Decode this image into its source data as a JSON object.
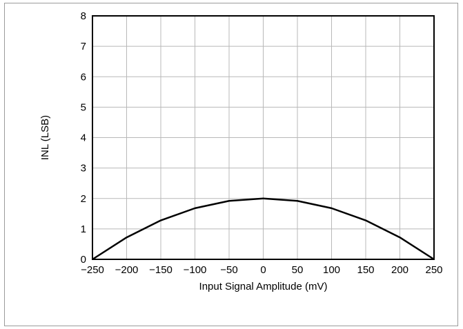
{
  "chart_data": {
    "type": "line",
    "xlabel": "Input Signal Amplitude (mV)",
    "ylabel": "INL (LSB)",
    "xlim": [
      -250,
      250
    ],
    "ylim": [
      0,
      8
    ],
    "grid": true,
    "x_ticks": [
      -250,
      -200,
      -150,
      -100,
      -50,
      0,
      50,
      100,
      150,
      200,
      250
    ],
    "x_tick_labels": [
      "−250",
      "−200",
      "−150",
      "−100",
      "−50",
      "0",
      "50",
      "100",
      "150",
      "200",
      "250"
    ],
    "y_ticks": [
      0,
      1,
      2,
      3,
      4,
      5,
      6,
      7,
      8
    ],
    "y_tick_labels": [
      "0",
      "1",
      "2",
      "3",
      "4",
      "5",
      "6",
      "7",
      "8"
    ],
    "series": [
      {
        "x": [
          -250,
          -200,
          -150,
          -100,
          -50,
          0,
          50,
          100,
          150,
          200,
          250
        ],
        "values": [
          0,
          0.72,
          1.28,
          1.68,
          1.92,
          2.0,
          1.92,
          1.68,
          1.28,
          0.72,
          0
        ],
        "color": "#000000"
      }
    ]
  }
}
